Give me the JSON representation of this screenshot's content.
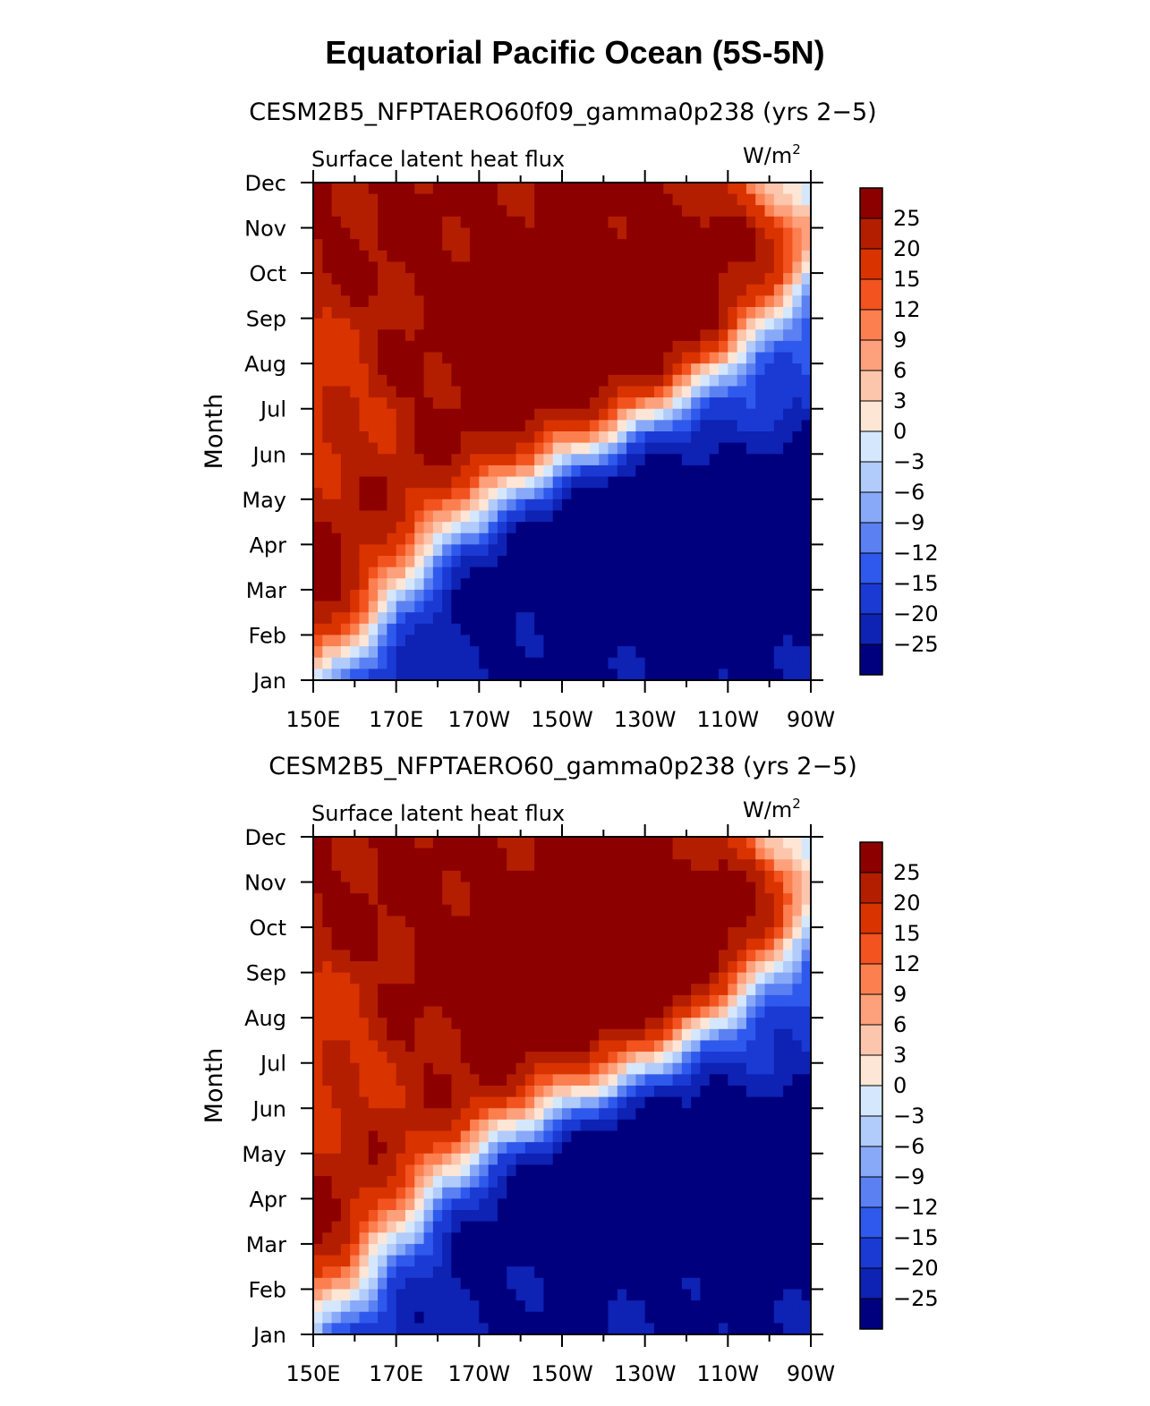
{
  "title": "Equatorial Pacific Ocean (5S-5N)",
  "colorbar": {
    "levels": [
      "25",
      "20",
      "15",
      "12",
      "9",
      "6",
      "3",
      "0",
      "−3",
      "−6",
      "−9",
      "−12",
      "−15",
      "−20",
      "−25"
    ],
    "colors": [
      "#8c0000",
      "#b31e00",
      "#d93300",
      "#f2531f",
      "#fc7f50",
      "#fca17c",
      "#fcc6ad",
      "#fde6d6",
      "#d5e7fd",
      "#b1cbfa",
      "#88a9f7",
      "#5a80f2",
      "#2f59ec",
      "#1a3ad3",
      "#0e22b3",
      "#00007f"
    ]
  },
  "chart_data": [
    {
      "type": "heatmap",
      "title": "CESM2B5_NFPTAERO60f09_gamma0p238 (yrs 2−5)",
      "left_title": "Surface latent heat flux",
      "units": "W/m",
      "units_exp": "2",
      "ylabel": "Month",
      "xlabel": "",
      "x_ticks": [
        "150E",
        "170E",
        "170W",
        "150W",
        "130W",
        "110W",
        "90W"
      ],
      "y_ticks": [
        "Jan",
        "Feb",
        "Mar",
        "Apr",
        "May",
        "Jun",
        "Jul",
        "Aug",
        "Sep",
        "Oct",
        "Nov",
        "Dec"
      ],
      "xlim": [
        150,
        270
      ],
      "levels": [
        -25,
        -20,
        -15,
        -12,
        -9,
        -6,
        -3,
        0,
        3,
        6,
        9,
        12,
        15,
        20,
        25
      ],
      "pos_center": [
        240,
        7.2
      ],
      "neg_center": [
        240,
        3.2
      ],
      "ridge_months": [
        0.6,
        1.0,
        1.6,
        2.3,
        2.9,
        3.5,
        3.9,
        4.4,
        4.9,
        5.3,
        5.8,
        6.3,
        6.8,
        7.4,
        8.0,
        8.6,
        9.3
      ]
    },
    {
      "type": "heatmap",
      "title": "CESM2B5_NFPTAERO60_gamma0p238 (yrs 2−5)",
      "left_title": "Surface latent heat flux",
      "units": "W/m",
      "units_exp": "2",
      "ylabel": "Month",
      "xlabel": "",
      "x_ticks": [
        "150E",
        "170E",
        "170W",
        "150W",
        "130W",
        "110W",
        "90W"
      ],
      "y_ticks": [
        "Jan",
        "Feb",
        "Mar",
        "Apr",
        "May",
        "Jun",
        "Jul",
        "Aug",
        "Sep",
        "Oct",
        "Nov",
        "Dec"
      ],
      "xlim": [
        150,
        270
      ],
      "levels": [
        -25,
        -20,
        -15,
        -12,
        -9,
        -6,
        -3,
        0,
        3,
        6,
        9,
        12,
        15,
        20,
        25
      ],
      "pos_center": [
        240,
        7.6
      ],
      "neg_center": [
        240,
        3.5
      ],
      "ridge_months": [
        0.9,
        1.3,
        1.9,
        2.5,
        3.1,
        3.7,
        4.2,
        4.7,
        5.1,
        5.5,
        5.9,
        6.4,
        6.9,
        7.5,
        8.1,
        8.8,
        9.5
      ]
    }
  ]
}
